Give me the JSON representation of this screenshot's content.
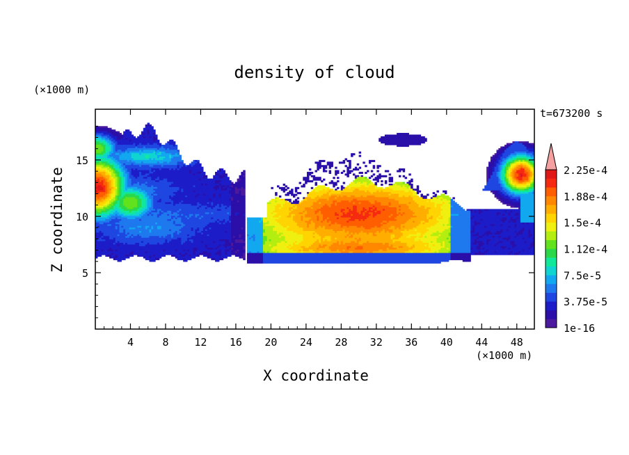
{
  "chart_data": {
    "type": "heatmap",
    "title": "density of cloud",
    "xlabel": "X coordinate",
    "ylabel": "Z coordinate",
    "x_unit": "(×1000 m)",
    "y_unit": "(×1000 m)",
    "time_label": "t=673200 s",
    "xlim": [
      0,
      50
    ],
    "ylim": [
      0,
      19.5
    ],
    "x_ticks": [
      4,
      8,
      12,
      16,
      20,
      24,
      28,
      32,
      36,
      40,
      44,
      48
    ],
    "y_ticks": [
      5,
      10,
      15
    ],
    "colorbar": {
      "levels_labeled": [
        "1e-16",
        "3.75e-5",
        "7.5e-5",
        "1.12e-4",
        "1.5e-4",
        "1.88e-4",
        "2.25e-4"
      ],
      "colors": [
        "#4b1a9e",
        "#2b0fa8",
        "#1c1cc8",
        "#1f46e0",
        "#1e78ee",
        "#12a8f0",
        "#10d4d0",
        "#10e89a",
        "#2ad84a",
        "#62e21c",
        "#b4ee10",
        "#f0f010",
        "#ffd400",
        "#ffae00",
        "#ff8800",
        "#ff5e00",
        "#f52a10",
        "#e01818",
        "#f4a0a0"
      ],
      "extend": "max"
    },
    "regions": [
      {
        "x": [
          0,
          17
        ],
        "z": [
          6.2,
          18.5
        ],
        "peak": "2.4e-4"
      },
      {
        "x": [
          17,
          43
        ],
        "z": [
          5.6,
          17.5
        ],
        "peak": "2.2e-4"
      },
      {
        "x": [
          43,
          50
        ],
        "z": [
          6.5,
          16.5
        ],
        "peak": "2.4e-4"
      }
    ]
  }
}
